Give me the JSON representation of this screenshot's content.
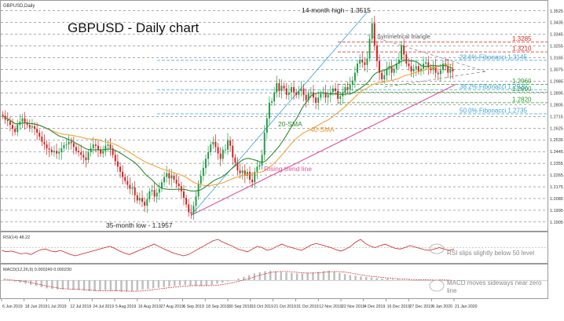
{
  "header": {
    "symbol_tag": "GBPUSD,Daily",
    "title": "GBPUSD - Daily chart"
  },
  "colors": {
    "up": "#1e9a44",
    "down": "#d21f1f",
    "sma20": "#2e8b2e",
    "sma40": "#f2a33a",
    "trendline": "#e0509a",
    "fib": "#3aa3d8",
    "resistance": "#e0261b",
    "support": "#2e9a2e",
    "triangle": "#888888",
    "grid": "#555555"
  },
  "chart_data": [
    {
      "type": "candlestick",
      "title": "GBPUSD - Daily chart",
      "ylim": [
        1.185,
        1.359
      ],
      "y_ticks": [
        1.3525,
        1.3435,
        1.3345,
        1.3255,
        1.3165,
        1.3075,
        1.2985,
        1.2895,
        1.2805,
        1.2715,
        1.2625,
        1.2535,
        1.2445,
        1.2355,
        1.2265,
        1.2175,
        1.2085,
        1.1995,
        1.1905
      ],
      "x_tick_labels": [
        "6 Jun 2019",
        "18 Jun 2019",
        "1 Jul 2019",
        "12 Jul 2019",
        "24 Jul 2019",
        "5 Aug 2019",
        "16 Aug 2019",
        "27 Aug 2019",
        "6 Sep 2019",
        "18 Sep 2019",
        "30 Sep 2019",
        "10 Oct 2019",
        "21 Oct 2019",
        "31 Oct 2019",
        "12 Nov 2019",
        "22 Nov 2019",
        "4 Dec 2019",
        "16 Dec 2019",
        "27 Dec 2019",
        "9 Jan 2020",
        "21 Jan 2020"
      ],
      "closes": [
        1.272,
        1.269,
        1.268,
        1.265,
        1.262,
        1.2595,
        1.265,
        1.2675,
        1.27,
        1.267,
        1.265,
        1.263,
        1.264,
        1.262,
        1.259,
        1.256,
        1.252,
        1.25,
        1.247,
        1.246,
        1.244,
        1.245,
        1.243,
        1.244,
        1.247,
        1.2495,
        1.25,
        1.252,
        1.251,
        1.248,
        1.245,
        1.244,
        1.242,
        1.24,
        1.238,
        1.244,
        1.247,
        1.25,
        1.249,
        1.246,
        1.243,
        1.245,
        1.249,
        1.25,
        1.247,
        1.242,
        1.237,
        1.233,
        1.229,
        1.225,
        1.222,
        1.219,
        1.216,
        1.217,
        1.211,
        1.207,
        1.209,
        1.206,
        1.203,
        1.208,
        1.214,
        1.215,
        1.21,
        1.213,
        1.216,
        1.221,
        1.225,
        1.228,
        1.224,
        1.226,
        1.223,
        1.22,
        1.218,
        1.214,
        1.209,
        1.204,
        1.198,
        1.197,
        1.203,
        1.21,
        1.22,
        1.226,
        1.232,
        1.239,
        1.244,
        1.25,
        1.252,
        1.248,
        1.243,
        1.239,
        1.246,
        1.246,
        1.253,
        1.249,
        1.24,
        1.236,
        1.23,
        1.228,
        1.23,
        1.226,
        1.229,
        1.223,
        1.221,
        1.229,
        1.233,
        1.234,
        1.242,
        1.259,
        1.27,
        1.282,
        1.283,
        1.29,
        1.297,
        1.291,
        1.295,
        1.293,
        1.288,
        1.29,
        1.294,
        1.29,
        1.288,
        1.291,
        1.293,
        1.288,
        1.284,
        1.289,
        1.29,
        1.286,
        1.282,
        1.286,
        1.289,
        1.29,
        1.286,
        1.288,
        1.29,
        1.293,
        1.291,
        1.285,
        1.287,
        1.29,
        1.294,
        1.292,
        1.296,
        1.299,
        1.305,
        1.312,
        1.315,
        1.313,
        1.311,
        1.316,
        1.331,
        1.343,
        1.326,
        1.314,
        1.305,
        1.3,
        1.303,
        1.308,
        1.31,
        1.305,
        1.308,
        1.312,
        1.315,
        1.326,
        1.319,
        1.312,
        1.31,
        1.306,
        1.308,
        1.31,
        1.306,
        1.308,
        1.312,
        1.313,
        1.309,
        1.307,
        1.31,
        1.305,
        1.304,
        1.307,
        1.312,
        1.31,
        1.305,
        1.308,
        1.306
      ],
      "sma20_label": "20-SMA",
      "sma40_label": "40-SMA",
      "trendline_label": "Rising trend line",
      "triangle_label": "Symmetrical triangle",
      "high_label": "14-month high - 1.3515",
      "low_label": "35-month low - 1.1957",
      "levels": [
        {
          "value": 1.3285,
          "label": "1.3285",
          "kind": "resistance"
        },
        {
          "value": 1.321,
          "label": "1.3210",
          "kind": "resistance"
        },
        {
          "value": 1.3145,
          "label": "23.6% Fibonacci 1.3145",
          "kind": "fib"
        },
        {
          "value": 1.296,
          "label": "1.2960",
          "kind": "support"
        },
        {
          "value": 1.292,
          "label": "38.2% Fibonacci 1.2920",
          "kind": "fib"
        },
        {
          "value": 1.29,
          "label": "1.2900",
          "kind": "support"
        },
        {
          "value": 1.282,
          "label": "1.2820",
          "kind": "support"
        },
        {
          "value": 1.2735,
          "label": "50.0% Fibonacci 1.2735",
          "kind": "fib"
        }
      ]
    },
    {
      "type": "line",
      "title": "RSI(14) 48.22",
      "ylim": [
        30,
        70
      ],
      "level": 50,
      "values": [
        46,
        44,
        45,
        43,
        41,
        42,
        40,
        44,
        47,
        48,
        45,
        44,
        46,
        43,
        40,
        38,
        40,
        42,
        44,
        46,
        48,
        50,
        52,
        49,
        45,
        42,
        40,
        43,
        46,
        49,
        52,
        55,
        52,
        48,
        45,
        42,
        40,
        38,
        40,
        44,
        48,
        52,
        56,
        60,
        62,
        58,
        55,
        52,
        48,
        46,
        44,
        48,
        52,
        50,
        46,
        48,
        52,
        55,
        52,
        50,
        48,
        46,
        50,
        54,
        56,
        54,
        52,
        50,
        47,
        45,
        48,
        52,
        58,
        62,
        56,
        52,
        50,
        53,
        55,
        52,
        49,
        48,
        50,
        53,
        51,
        49,
        47,
        46,
        48,
        50,
        48,
        46,
        48
      ],
      "annotation": "RSI slips slightly below 50 level"
    },
    {
      "type": "bar",
      "title": "MACD(12,26,9) 0.000249 0.000230",
      "ylim": [
        -0.03,
        0.025
      ],
      "values": [
        0.002,
        0.0,
        -0.002,
        -0.004,
        -0.006,
        -0.008,
        -0.01,
        -0.012,
        -0.014,
        -0.015,
        -0.016,
        -0.016,
        -0.015,
        -0.016,
        -0.017,
        -0.018,
        -0.019,
        -0.019,
        -0.018,
        -0.017,
        -0.018,
        -0.019,
        -0.02,
        -0.02,
        -0.019,
        -0.018,
        -0.016,
        -0.015,
        -0.014,
        -0.013,
        -0.012,
        -0.011,
        -0.01,
        -0.009,
        -0.008,
        -0.009,
        -0.01,
        -0.01,
        -0.009,
        -0.008,
        -0.006,
        -0.004,
        -0.002,
        0.0,
        0.003,
        0.006,
        0.009,
        0.012,
        0.014,
        0.016,
        0.017,
        0.016,
        0.015,
        0.014,
        0.013,
        0.012,
        0.012,
        0.013,
        0.014,
        0.015,
        0.016,
        0.017,
        0.015,
        0.013,
        0.011,
        0.009,
        0.008,
        0.007,
        0.006,
        0.005,
        0.004,
        0.003,
        0.003,
        0.002,
        0.002,
        0.001,
        0.001,
        0.0,
        0.001,
        0.001,
        0.0,
        0.0,
        0.001,
        0.0,
        0.0
      ],
      "annotation": "MACD moves sideways near zero line"
    }
  ]
}
